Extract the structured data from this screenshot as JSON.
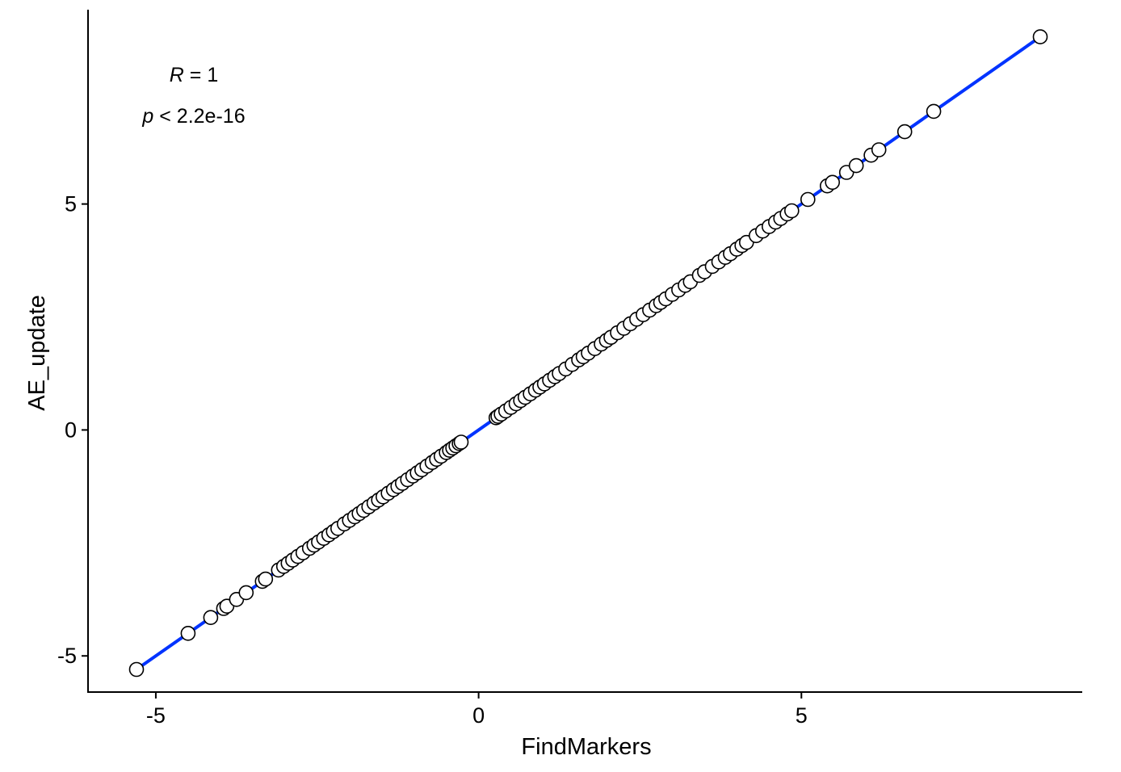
{
  "chart_data": {
    "type": "scatter",
    "xlabel": "FindMarkers",
    "ylabel": "AE_update",
    "xlim": [
      -6.05,
      9.35
    ],
    "ylim": [
      -5.8,
      9.3
    ],
    "x_ticks": [
      -5,
      0,
      5
    ],
    "y_ticks": [
      -5,
      0,
      5
    ],
    "x_tick_labels": [
      "-5",
      "0",
      "5"
    ],
    "y_tick_labels": [
      "-5",
      "0",
      "5"
    ],
    "grid": false,
    "annotations": {
      "r_symbol": "R",
      "r_rest": " = 1",
      "p_symbol": "p",
      "p_rest": " < 2.2e-16"
    },
    "fit_line": {
      "x": [
        -5.3,
        8.7
      ],
      "y": [
        -5.3,
        8.7
      ],
      "color": "#0033ff"
    },
    "point_style": {
      "fill": "#ffffff",
      "stroke": "#000000"
    },
    "points": [
      [
        -5.3,
        -5.3
      ],
      [
        -4.5,
        -4.5
      ],
      [
        -4.15,
        -4.15
      ],
      [
        -3.95,
        -3.95
      ],
      [
        -3.9,
        -3.9
      ],
      [
        -3.75,
        -3.75
      ],
      [
        -3.6,
        -3.6
      ],
      [
        -3.35,
        -3.35
      ],
      [
        -3.3,
        -3.3
      ],
      [
        -3.1,
        -3.1
      ],
      [
        -3.02,
        -3.02
      ],
      [
        -2.95,
        -2.95
      ],
      [
        -2.88,
        -2.88
      ],
      [
        -2.8,
        -2.8
      ],
      [
        -2.72,
        -2.72
      ],
      [
        -2.62,
        -2.62
      ],
      [
        -2.55,
        -2.55
      ],
      [
        -2.48,
        -2.48
      ],
      [
        -2.4,
        -2.4
      ],
      [
        -2.32,
        -2.32
      ],
      [
        -2.25,
        -2.25
      ],
      [
        -2.18,
        -2.18
      ],
      [
        -2.08,
        -2.08
      ],
      [
        -2.0,
        -2.0
      ],
      [
        -1.92,
        -1.92
      ],
      [
        -1.85,
        -1.85
      ],
      [
        -1.78,
        -1.78
      ],
      [
        -1.7,
        -1.7
      ],
      [
        -1.62,
        -1.62
      ],
      [
        -1.55,
        -1.55
      ],
      [
        -1.48,
        -1.48
      ],
      [
        -1.4,
        -1.4
      ],
      [
        -1.32,
        -1.32
      ],
      [
        -1.25,
        -1.25
      ],
      [
        -1.18,
        -1.18
      ],
      [
        -1.1,
        -1.1
      ],
      [
        -1.02,
        -1.02
      ],
      [
        -0.95,
        -0.95
      ],
      [
        -0.88,
        -0.88
      ],
      [
        -0.8,
        -0.8
      ],
      [
        -0.72,
        -0.72
      ],
      [
        -0.65,
        -0.65
      ],
      [
        -0.58,
        -0.58
      ],
      [
        -0.5,
        -0.5
      ],
      [
        -0.45,
        -0.45
      ],
      [
        -0.4,
        -0.4
      ],
      [
        -0.35,
        -0.35
      ],
      [
        -0.3,
        -0.3
      ],
      [
        -0.27,
        -0.27
      ],
      [
        0.27,
        0.27
      ],
      [
        0.3,
        0.3
      ],
      [
        0.35,
        0.35
      ],
      [
        0.42,
        0.42
      ],
      [
        0.5,
        0.5
      ],
      [
        0.58,
        0.58
      ],
      [
        0.65,
        0.65
      ],
      [
        0.72,
        0.72
      ],
      [
        0.8,
        0.8
      ],
      [
        0.88,
        0.88
      ],
      [
        0.95,
        0.95
      ],
      [
        1.02,
        1.02
      ],
      [
        1.1,
        1.1
      ],
      [
        1.18,
        1.18
      ],
      [
        1.25,
        1.25
      ],
      [
        1.35,
        1.35
      ],
      [
        1.45,
        1.45
      ],
      [
        1.55,
        1.55
      ],
      [
        1.62,
        1.62
      ],
      [
        1.7,
        1.7
      ],
      [
        1.8,
        1.8
      ],
      [
        1.9,
        1.9
      ],
      [
        1.98,
        1.98
      ],
      [
        2.05,
        2.05
      ],
      [
        2.15,
        2.15
      ],
      [
        2.25,
        2.25
      ],
      [
        2.35,
        2.35
      ],
      [
        2.45,
        2.45
      ],
      [
        2.55,
        2.55
      ],
      [
        2.65,
        2.65
      ],
      [
        2.75,
        2.75
      ],
      [
        2.82,
        2.82
      ],
      [
        2.9,
        2.9
      ],
      [
        3.0,
        3.0
      ],
      [
        3.1,
        3.1
      ],
      [
        3.2,
        3.2
      ],
      [
        3.28,
        3.28
      ],
      [
        3.42,
        3.42
      ],
      [
        3.5,
        3.5
      ],
      [
        3.62,
        3.62
      ],
      [
        3.72,
        3.72
      ],
      [
        3.82,
        3.82
      ],
      [
        3.9,
        3.9
      ],
      [
        4.0,
        4.0
      ],
      [
        4.08,
        4.08
      ],
      [
        4.15,
        4.15
      ],
      [
        4.3,
        4.3
      ],
      [
        4.4,
        4.4
      ],
      [
        4.5,
        4.5
      ],
      [
        4.6,
        4.6
      ],
      [
        4.68,
        4.68
      ],
      [
        4.78,
        4.78
      ],
      [
        4.85,
        4.85
      ],
      [
        5.1,
        5.1
      ],
      [
        5.4,
        5.4
      ],
      [
        5.48,
        5.48
      ],
      [
        5.7,
        5.7
      ],
      [
        5.85,
        5.85
      ],
      [
        6.08,
        6.08
      ],
      [
        6.2,
        6.2
      ],
      [
        6.6,
        6.6
      ],
      [
        7.05,
        7.05
      ],
      [
        8.7,
        8.7
      ]
    ]
  }
}
